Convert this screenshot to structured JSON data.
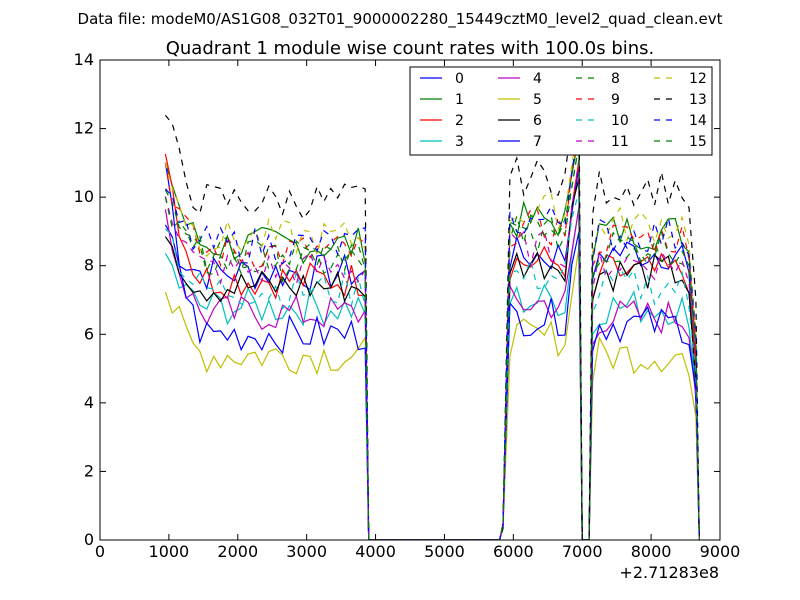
{
  "chart_data": {
    "type": "line",
    "suptitle": "Data file: modeM0/AS1G08_032T01_9000002280_15449cztM0_level2_quad_clean.evt",
    "title": "Quadrant 1 module wise count rates with 100.0s bins.",
    "xlabel": "",
    "ylabel": "",
    "x_offset_label": "+2.71283e8",
    "xlim": [
      0,
      9000
    ],
    "ylim": [
      0,
      14
    ],
    "xticks": [
      0,
      1000,
      2000,
      3000,
      4000,
      5000,
      6000,
      7000,
      8000,
      9000
    ],
    "yticks": [
      0,
      2,
      4,
      6,
      8,
      10,
      12,
      14
    ],
    "grid": false,
    "legend_position": "top-right",
    "segments": [
      {
        "x_start": 950,
        "x_end": 3850,
        "step": 100
      },
      {
        "x_start": 5850,
        "x_end": 6950,
        "step": 100
      },
      {
        "x_start": 7150,
        "x_end": 8650,
        "step": 100
      }
    ],
    "gap_drop_points": [
      {
        "x": 3900,
        "y": 0
      },
      {
        "x": 5800,
        "y": 0
      },
      {
        "x": 7000,
        "y": 0
      },
      {
        "x": 7100,
        "y": 0
      },
      {
        "x": 8700,
        "y": 0
      }
    ],
    "series": [
      {
        "name": "0",
        "color": "#0000ff",
        "dash": "solid",
        "base": [
          7.8,
          8.3,
          8.4
        ],
        "start": 9.2,
        "end": 4.0
      },
      {
        "name": "1",
        "color": "#008000",
        "dash": "solid",
        "base": [
          8.6,
          9.3,
          9.0
        ],
        "start": 11.2,
        "end": 5.0
      },
      {
        "name": "2",
        "color": "#ff0000",
        "dash": "solid",
        "base": [
          7.6,
          8.1,
          7.8
        ],
        "start": 11.5,
        "end": 5.2
      },
      {
        "name": "3",
        "color": "#00bfbf",
        "dash": "solid",
        "base": [
          6.8,
          7.0,
          6.8
        ],
        "start": 8.3,
        "end": 4.4
      },
      {
        "name": "4",
        "color": "#bf00bf",
        "dash": "solid",
        "base": [
          6.6,
          6.9,
          6.5
        ],
        "start": 9.6,
        "end": 4.2
      },
      {
        "name": "5",
        "color": "#bfbf00",
        "dash": "solid",
        "base": [
          5.4,
          5.9,
          5.4
        ],
        "start": 7.4,
        "end": 3.6
      },
      {
        "name": "6",
        "color": "#000000",
        "dash": "solid",
        "base": [
          7.4,
          8.1,
          7.8
        ],
        "start": 9.3,
        "end": 4.6
      },
      {
        "name": "7",
        "color": "#0000ff",
        "dash": "solid",
        "base": [
          6.0,
          6.5,
          6.3
        ],
        "start": 10.8,
        "end": 4.4
      },
      {
        "name": "8",
        "color": "#008000",
        "dash": "dashed",
        "base": [
          8.1,
          8.9,
          8.5
        ],
        "start": 10.2,
        "end": 5.6
      },
      {
        "name": "9",
        "color": "#ff0000",
        "dash": "dashed",
        "base": [
          8.4,
          9.1,
          8.8
        ],
        "start": 11.0,
        "end": 5.8
      },
      {
        "name": "10",
        "color": "#00bfbf",
        "dash": "dashed",
        "base": [
          7.3,
          7.7,
          7.4
        ],
        "start": 9.4,
        "end": 4.8
      },
      {
        "name": "11",
        "color": "#bf00bf",
        "dash": "dashed",
        "base": [
          7.9,
          8.5,
          8.1
        ],
        "start": 10.4,
        "end": 5.5
      },
      {
        "name": "12",
        "color": "#bfbf00",
        "dash": "dashed",
        "base": [
          8.8,
          9.6,
          9.2
        ],
        "start": 11.3,
        "end": 6.1
      },
      {
        "name": "13",
        "color": "#000000",
        "dash": "dashed",
        "base": [
          9.9,
          10.6,
          10.3
        ],
        "start": 12.4,
        "end": 7.0
      },
      {
        "name": "14",
        "color": "#0000ff",
        "dash": "dashed",
        "base": [
          8.6,
          9.3,
          8.9
        ],
        "start": 10.0,
        "end": 5.9
      },
      {
        "name": "15",
        "color": "#008000",
        "dash": "dashed",
        "base": [
          8.3,
          9.0,
          8.6
        ],
        "start": 9.8,
        "end": 5.7
      }
    ]
  }
}
